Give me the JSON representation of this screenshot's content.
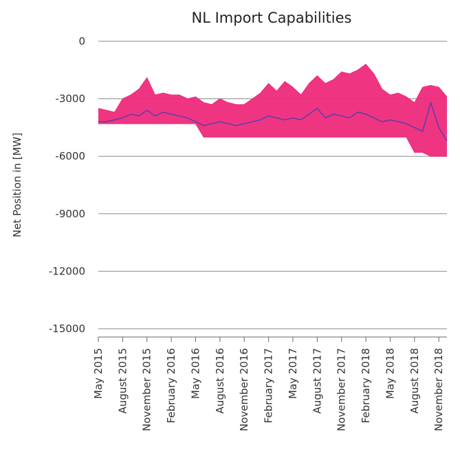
{
  "chart_data": {
    "type": "line",
    "title": "NL Import Capabilities",
    "y_label": "Net Position in [MW]",
    "x": [
      "2015-05",
      "2015-06",
      "2015-07",
      "2015-08",
      "2015-09",
      "2015-10",
      "2015-11",
      "2015-12",
      "2016-01",
      "2016-02",
      "2016-03",
      "2016-04",
      "2016-05",
      "2016-06",
      "2016-07",
      "2016-08",
      "2016-09",
      "2016-10",
      "2016-11",
      "2016-12",
      "2017-01",
      "2017-02",
      "2017-03",
      "2017-04",
      "2017-05",
      "2017-06",
      "2017-07",
      "2017-08",
      "2017-09",
      "2017-10",
      "2017-11",
      "2017-12",
      "2018-01",
      "2018-02",
      "2018-03",
      "2018-04",
      "2018-05",
      "2018-06",
      "2018-07",
      "2018-08",
      "2018-09",
      "2018-10",
      "2018-11",
      "2018-12"
    ],
    "series": [
      {
        "color": "#ee2a7b",
        "values": [
          -3500,
          -3600,
          -3700,
          -3000,
          -2800,
          -2500,
          -1900,
          -2800,
          -2700,
          -2800,
          -2800,
          -3000,
          -2900,
          -3200,
          -3300,
          -3000,
          -3200,
          -3300,
          -3300,
          -3000,
          -2700,
          -2200,
          -2600,
          -2100,
          -2400,
          -2800,
          -2200,
          -1800,
          -2200,
          -2000,
          -1600,
          -1700,
          -1500,
          -1200,
          -1700,
          -2500,
          -2800,
          -2700,
          -2900,
          -3200,
          -2400,
          -2300,
          -2400,
          -2900
        ]
      },
      {
        "color": "#ee2a7b",
        "values": [
          -4300,
          -4300,
          -4300,
          -4300,
          -4300,
          -4300,
          -4300,
          -4300,
          -4300,
          -4300,
          -4300,
          -4300,
          -4300,
          -5000,
          -5000,
          -5000,
          -5000,
          -5000,
          -5000,
          -5000,
          -5000,
          -5000,
          -5000,
          -5000,
          -5000,
          -5000,
          -5000,
          -5000,
          -5000,
          -5000,
          -5000,
          -5000,
          -5000,
          -5000,
          -5000,
          -5000,
          -5000,
          -5000,
          -5000,
          -5800,
          -5800,
          -6000,
          -6000,
          -6000
        ]
      },
      {
        "color": "#5a3ea8",
        "values": [
          -4200,
          -4200,
          -4100,
          -4000,
          -3800,
          -3900,
          -3600,
          -3900,
          -3700,
          -3800,
          -3900,
          -4000,
          -4200,
          -4400,
          -4300,
          -4200,
          -4300,
          -4400,
          -4300,
          -4200,
          -4100,
          -3900,
          -4000,
          -4100,
          -4000,
          -4100,
          -3800,
          -3500,
          -4000,
          -3800,
          -3900,
          -4000,
          -3700,
          -3800,
          -4000,
          -4200,
          -4100,
          -4200,
          -4300,
          -4500,
          -4700,
          -3200,
          -4500,
          -5200
        ]
      }
    ],
    "xlim": [
      "2015-05",
      "2018-12"
    ],
    "xticks": [
      {
        "value": "2015-05",
        "label": "May 2015"
      },
      {
        "value": "2015-08",
        "label": "August 2015"
      },
      {
        "value": "2015-11",
        "label": "November 2015"
      },
      {
        "value": "2016-02",
        "label": "February 2016"
      },
      {
        "value": "2016-05",
        "label": "May 2016"
      },
      {
        "value": "2016-08",
        "label": "August 2016"
      },
      {
        "value": "2016-11",
        "label": "November 2016"
      },
      {
        "value": "2017-02",
        "label": "February 2017"
      },
      {
        "value": "2017-05",
        "label": "May 2017"
      },
      {
        "value": "2017-08",
        "label": "August 2017"
      },
      {
        "value": "2017-11",
        "label": "November 2017"
      },
      {
        "value": "2018-02",
        "label": "February 2018"
      },
      {
        "value": "2018-05",
        "label": "May 2018"
      },
      {
        "value": "2018-08",
        "label": "August 2018"
      },
      {
        "value": "2018-11",
        "label": "November 2018"
      }
    ],
    "ylim": [
      -15000,
      0
    ],
    "yticks": [
      0,
      -3000,
      -6000,
      -9000,
      -12000,
      -15000
    ],
    "grid": true
  }
}
